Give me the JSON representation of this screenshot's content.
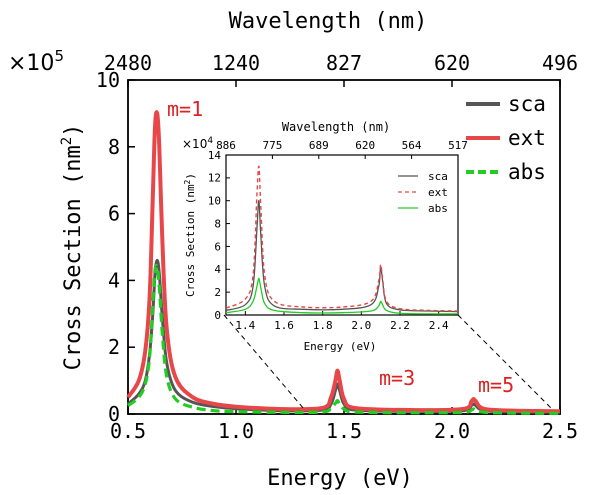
{
  "figure": {
    "main": {
      "xlabel": "Energy (eV)",
      "ylabel": "Cross Section (nm",
      "ylabel_sup": "2",
      "ylabel_close": ")",
      "top_axis_label": "Wavelength (nm)",
      "multiplier_base": "×10",
      "multiplier_exp": "5",
      "x_ticks": [
        "0.5",
        "1.0",
        "1.5",
        "2.0",
        "2.5"
      ],
      "y_ticks": [
        "0",
        "2",
        "4",
        "6",
        "8",
        "10"
      ],
      "top_ticks": [
        "2480",
        "1240",
        "827",
        "620",
        "496"
      ],
      "annotations": [
        "m=1",
        "m=3",
        "m=5"
      ]
    },
    "inset": {
      "xlabel": "Energy (eV)",
      "ylabel": "Cross Section (nm",
      "ylabel_sup": "2",
      "ylabel_close": ")",
      "top_axis_label": "Wavelength (nm)",
      "multiplier_base": "×10",
      "multiplier_exp": "4",
      "x_ticks": [
        "1.4",
        "1.6",
        "1.8",
        "2.0",
        "2.2",
        "2.4"
      ],
      "y_ticks": [
        "0",
        "2",
        "4",
        "6",
        "8",
        "10",
        "12",
        "14"
      ],
      "top_ticks": [
        "886",
        "775",
        "689",
        "620",
        "564",
        "517"
      ]
    },
    "colors": {
      "sca": "#555555",
      "ext": "#e8474a",
      "abs": "#22cc22",
      "annotation": "#dd2222"
    }
  },
  "chart_data": [
    {
      "type": "line",
      "title": "",
      "xlabel": "Energy (eV)",
      "ylabel": "Cross Section (nm2) ×10^5",
      "top_xlabel": "Wavelength (nm)",
      "xlim": [
        0.5,
        2.5
      ],
      "ylim": [
        0,
        10
      ],
      "grid": false,
      "legend": "top-right",
      "peaks": [
        {
          "label": "m=1",
          "x": 0.63,
          "y": 9.0
        },
        {
          "label": "m=3",
          "x": 1.47,
          "y": 1.3
        },
        {
          "label": "m=5",
          "x": 2.1,
          "y": 0.45
        }
      ],
      "series": [
        {
          "name": "sca",
          "style": "solid",
          "x": [
            0.5,
            0.55,
            0.58,
            0.6,
            0.615,
            0.625,
            0.635,
            0.645,
            0.66,
            0.68,
            0.72,
            0.8,
            0.9,
            1.0,
            1.2,
            1.4,
            1.44,
            1.46,
            1.47,
            1.48,
            1.5,
            1.55,
            1.8,
            2.05,
            2.09,
            2.1,
            2.11,
            2.15,
            2.3,
            2.5
          ],
          "y": [
            0.3,
            0.6,
            1.0,
            1.8,
            3.0,
            4.2,
            4.6,
            4.2,
            2.8,
            1.5,
            0.7,
            0.35,
            0.22,
            0.16,
            0.1,
            0.12,
            0.3,
            0.7,
            0.9,
            0.7,
            0.3,
            0.12,
            0.08,
            0.1,
            0.25,
            0.3,
            0.25,
            0.1,
            0.06,
            0.05
          ]
        },
        {
          "name": "ext",
          "style": "solid",
          "x": [
            0.5,
            0.55,
            0.58,
            0.6,
            0.615,
            0.625,
            0.635,
            0.645,
            0.66,
            0.68,
            0.72,
            0.8,
            0.9,
            1.0,
            1.2,
            1.4,
            1.44,
            1.46,
            1.47,
            1.48,
            1.5,
            1.55,
            1.8,
            2.05,
            2.09,
            2.1,
            2.11,
            2.15,
            2.3,
            2.5
          ],
          "y": [
            0.5,
            1.0,
            1.9,
            3.5,
            6.5,
            8.6,
            9.0,
            8.0,
            5.0,
            2.5,
            1.1,
            0.5,
            0.3,
            0.22,
            0.15,
            0.18,
            0.5,
            1.0,
            1.3,
            1.0,
            0.45,
            0.18,
            0.12,
            0.15,
            0.38,
            0.45,
            0.38,
            0.15,
            0.1,
            0.08
          ]
        },
        {
          "name": "abs",
          "style": "dashed",
          "x": [
            0.5,
            0.55,
            0.58,
            0.6,
            0.615,
            0.625,
            0.635,
            0.645,
            0.66,
            0.68,
            0.72,
            0.8,
            0.9,
            1.0,
            1.2,
            1.4,
            1.44,
            1.46,
            1.47,
            1.48,
            1.5,
            1.55,
            1.8,
            2.05,
            2.09,
            2.1,
            2.11,
            2.15,
            2.3,
            2.5
          ],
          "y": [
            0.25,
            0.5,
            0.9,
            1.7,
            3.3,
            4.3,
            4.4,
            3.8,
            2.3,
            1.1,
            0.45,
            0.2,
            0.1,
            0.07,
            0.05,
            0.06,
            0.18,
            0.32,
            0.4,
            0.3,
            0.15,
            0.06,
            0.04,
            0.05,
            0.12,
            0.15,
            0.12,
            0.05,
            0.03,
            0.02
          ]
        }
      ]
    },
    {
      "type": "line",
      "title": "",
      "xlabel": "Energy (eV)",
      "ylabel": "Cross Section (nm2) ×10^4",
      "top_xlabel": "Wavelength (nm)",
      "xlim": [
        1.3,
        2.5
      ],
      "ylim": [
        0,
        14
      ],
      "grid": false,
      "legend": "top-right",
      "series": [
        {
          "name": "sca",
          "style": "solid",
          "x": [
            1.3,
            1.4,
            1.44,
            1.46,
            1.47,
            1.48,
            1.5,
            1.55,
            1.7,
            1.9,
            2.05,
            2.09,
            2.1,
            2.11,
            2.13,
            2.2,
            2.35,
            2.5
          ],
          "y": [
            0.4,
            0.9,
            2.5,
            7.5,
            10.0,
            7.0,
            2.5,
            0.8,
            0.5,
            0.5,
            0.9,
            2.5,
            4.2,
            3.0,
            1.0,
            0.45,
            0.35,
            0.3
          ]
        },
        {
          "name": "ext",
          "style": "dashed",
          "x": [
            1.3,
            1.4,
            1.44,
            1.46,
            1.47,
            1.48,
            1.5,
            1.55,
            1.7,
            1.9,
            2.05,
            2.09,
            2.1,
            2.11,
            2.13,
            2.2,
            2.35,
            2.5
          ],
          "y": [
            0.6,
            1.4,
            3.5,
            10.5,
            13.0,
            9.5,
            3.5,
            1.2,
            0.7,
            0.7,
            1.2,
            3.0,
            4.4,
            3.2,
            1.2,
            0.55,
            0.4,
            0.35
          ]
        },
        {
          "name": "abs",
          "style": "solid",
          "x": [
            1.3,
            1.4,
            1.44,
            1.46,
            1.47,
            1.48,
            1.5,
            1.55,
            1.7,
            1.9,
            2.05,
            2.09,
            2.1,
            2.11,
            2.13,
            2.2,
            2.35,
            2.5
          ],
          "y": [
            0.2,
            0.5,
            1.2,
            2.5,
            3.2,
            2.4,
            1.0,
            0.4,
            0.2,
            0.2,
            0.35,
            0.8,
            1.2,
            0.9,
            0.4,
            0.15,
            0.1,
            0.1
          ]
        }
      ]
    }
  ]
}
